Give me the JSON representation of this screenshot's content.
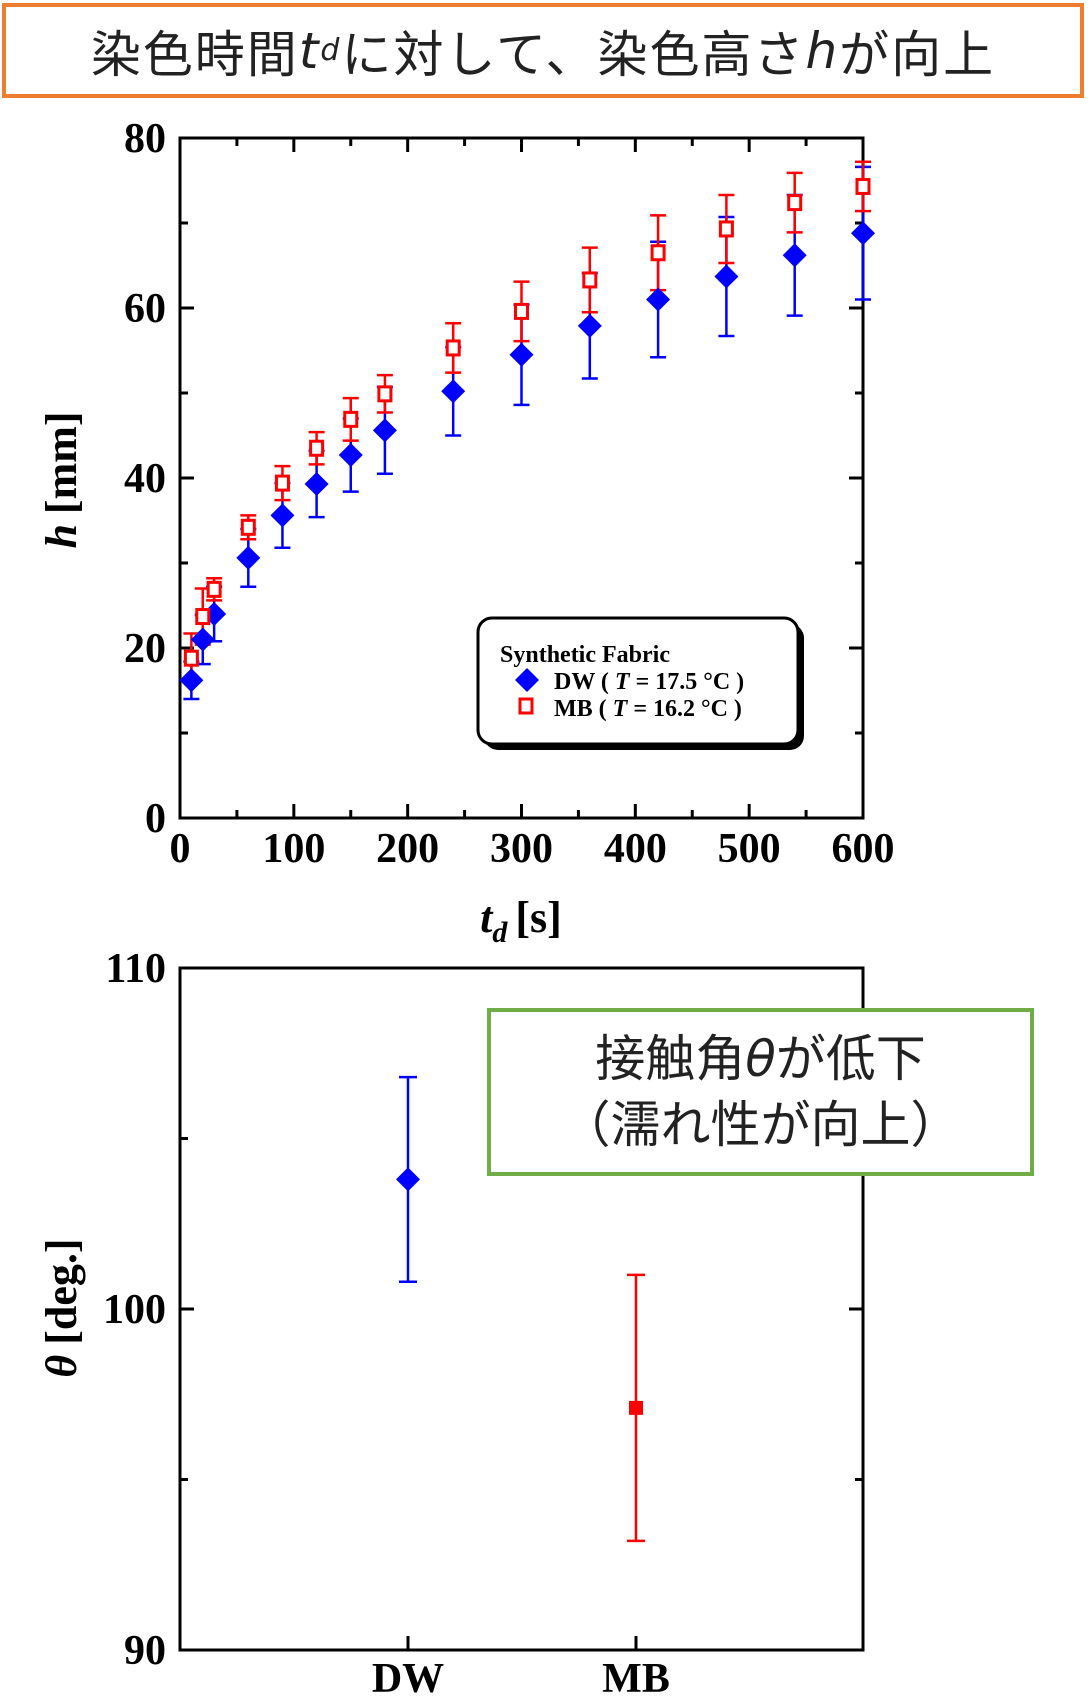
{
  "banner": {
    "text_before": "染色時間",
    "var_t": "t",
    "var_t_sub": "d",
    "text_middle": "に対して、染色高さ",
    "var_h": "h",
    "text_after": "が向上"
  },
  "note": {
    "line1_before": "接触角",
    "line1_var": "θ",
    "line1_after": "が低下",
    "line2": "（濡れ性が向上）"
  },
  "colors": {
    "banner_border": "#ED7D31",
    "note_border": "#70AD47",
    "dw": "#0000FF",
    "mb": "#FF0000"
  },
  "chart_data": [
    {
      "type": "scatter",
      "xlabel_var": "t",
      "xlabel_sub": "d",
      "xlabel_unit": "[s]",
      "ylabel_var": "h",
      "ylabel_unit": "[mm]",
      "xlim": [
        0,
        600
      ],
      "ylim": [
        0,
        80
      ],
      "xticks": [
        0,
        100,
        200,
        300,
        400,
        500,
        600
      ],
      "yticks": [
        0,
        20,
        40,
        60,
        80
      ],
      "legend": {
        "title": "Synthetic Fabric",
        "position": "lower-right",
        "entries": [
          {
            "label_pre": "DW ( ",
            "label_var": "T",
            "label_post": " = 17.5 °C )"
          },
          {
            "label_pre": "MB ( ",
            "label_var": "T",
            "label_post": " = 16.2 °C )"
          }
        ]
      },
      "series": [
        {
          "name": "DW",
          "marker": "diamond",
          "x": [
            10,
            20,
            30,
            60,
            90,
            120,
            150,
            180,
            240,
            300,
            360,
            420,
            480,
            540,
            600
          ],
          "y": [
            16.2,
            21.0,
            24.0,
            30.6,
            35.6,
            39.3,
            42.7,
            45.6,
            50.2,
            54.5,
            57.9,
            61.0,
            63.7,
            66.2,
            68.8
          ],
          "err": [
            2.2,
            2.9,
            3.2,
            3.4,
            3.8,
            3.9,
            4.3,
            5.1,
            5.2,
            5.9,
            6.2,
            6.8,
            7.0,
            7.1,
            7.8
          ]
        },
        {
          "name": "MB",
          "marker": "open-square",
          "x": [
            10,
            20,
            30,
            60,
            90,
            120,
            150,
            180,
            240,
            300,
            360,
            420,
            480,
            540,
            600
          ],
          "y": [
            18.8,
            23.7,
            26.9,
            34.2,
            39.4,
            43.5,
            46.9,
            49.9,
            55.3,
            59.6,
            63.3,
            66.5,
            69.3,
            72.4,
            74.3
          ],
          "err": [
            2.9,
            3.3,
            1.3,
            1.4,
            2.0,
            1.9,
            2.5,
            2.2,
            2.9,
            3.5,
            3.8,
            4.4,
            4.0,
            3.5,
            2.9
          ]
        }
      ]
    },
    {
      "type": "scatter",
      "ylabel_var": "θ",
      "ylabel_unit": "[deg.]",
      "ylim": [
        90,
        110
      ],
      "yticks": [
        90,
        100,
        110
      ],
      "categories": [
        "DW",
        "MB"
      ],
      "series": [
        {
          "name": "DW",
          "marker": "diamond",
          "value": 103.8,
          "err": 3.0
        },
        {
          "name": "MB",
          "marker": "square",
          "value": 97.1,
          "err": 3.9
        }
      ]
    }
  ]
}
